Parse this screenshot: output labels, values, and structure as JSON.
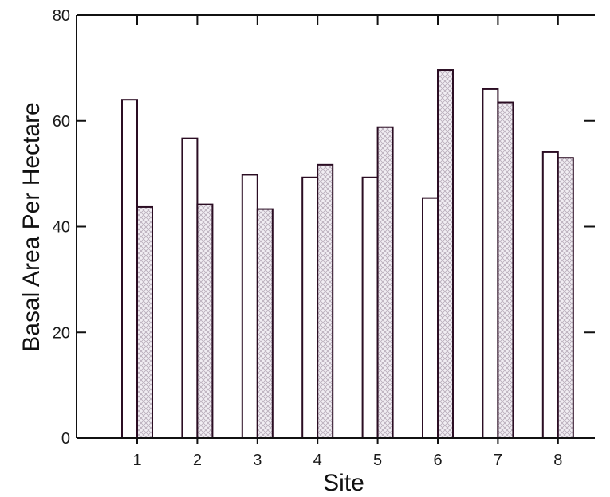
{
  "chart_data": {
    "type": "bar",
    "xlabel": "Site",
    "ylabel": "Basal Area Per Hectare",
    "categories": [
      "1",
      "2",
      "3",
      "4",
      "5",
      "6",
      "7",
      "8"
    ],
    "series": [
      {
        "values": [
          64,
          56.7,
          49.8,
          49.3,
          49.3,
          45.4,
          66,
          54.1
        ],
        "fill": "plain",
        "color": "#ffffff"
      },
      {
        "values": [
          43.7,
          44.2,
          43.3,
          51.7,
          58.8,
          69.6,
          63.5,
          53
        ],
        "fill": "crosshatch",
        "color": "#e8e3ea"
      }
    ],
    "ylim": [
      0,
      80
    ],
    "yticks": [
      "0",
      "20",
      "40",
      "60",
      "80"
    ],
    "grid": false,
    "legend": "none",
    "outline_color": "#2b0d23"
  }
}
